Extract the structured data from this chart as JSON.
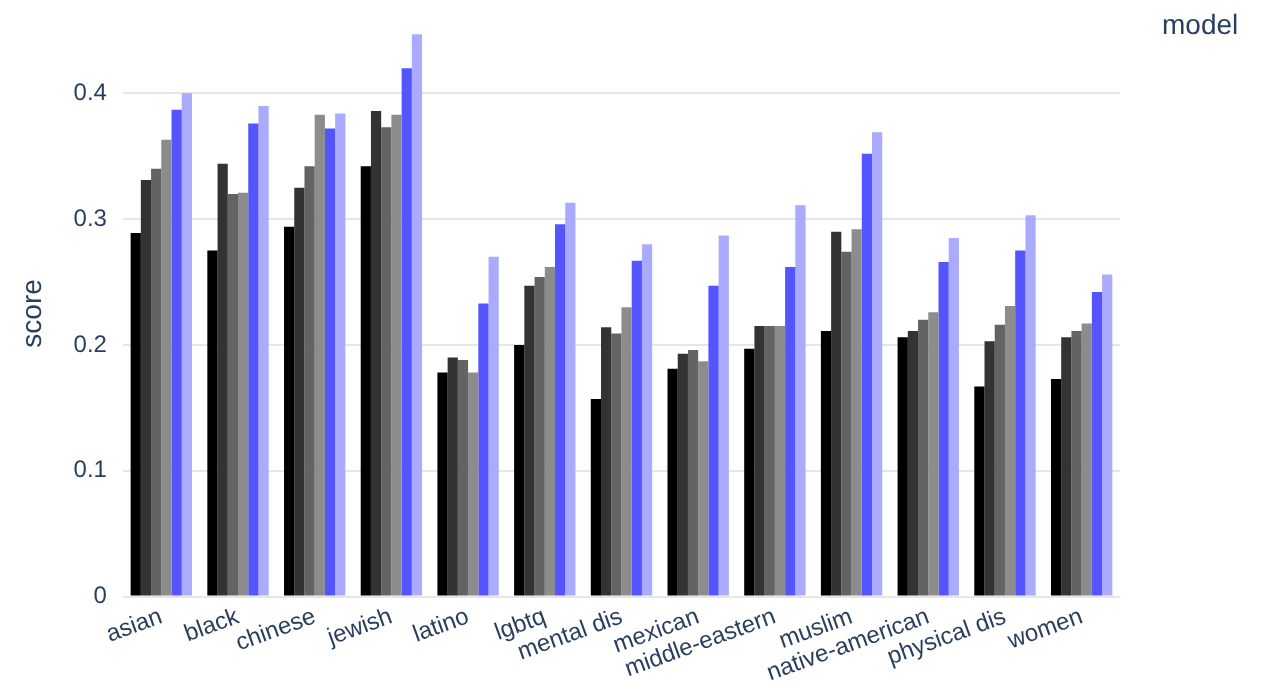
{
  "chart_data": {
    "type": "bar",
    "ylabel": "score",
    "legend_title": "model",
    "categories": [
      "asian",
      "black",
      "chinese",
      "jewish",
      "latino",
      "lgbtq",
      "mental dis",
      "mexican",
      "middle-eastern",
      "muslim",
      "native-american",
      "physical dis",
      "women"
    ],
    "series": [
      {
        "color": "#000000",
        "values": [
          0.289,
          0.275,
          0.294,
          0.342,
          0.178,
          0.2,
          0.157,
          0.181,
          0.197,
          0.211,
          0.206,
          0.167,
          0.173
        ]
      },
      {
        "color": "#333333",
        "values": [
          0.331,
          0.344,
          0.325,
          0.386,
          0.19,
          0.247,
          0.214,
          0.193,
          0.215,
          0.29,
          0.211,
          0.203,
          0.206
        ]
      },
      {
        "color": "#636363",
        "values": [
          0.34,
          0.32,
          0.342,
          0.373,
          0.188,
          0.254,
          0.209,
          0.196,
          0.215,
          0.274,
          0.22,
          0.216,
          0.211
        ]
      },
      {
        "color": "#8c8c8c",
        "values": [
          0.363,
          0.321,
          0.383,
          0.383,
          0.178,
          0.262,
          0.23,
          0.187,
          0.215,
          0.292,
          0.226,
          0.231,
          0.217
        ]
      },
      {
        "color": "#5555ff",
        "values": [
          0.387,
          0.376,
          0.372,
          0.42,
          0.233,
          0.296,
          0.267,
          0.247,
          0.262,
          0.352,
          0.266,
          0.275,
          0.242
        ]
      },
      {
        "color": "#aaaaff",
        "values": [
          0.4,
          0.39,
          0.384,
          0.447,
          0.27,
          0.313,
          0.28,
          0.287,
          0.311,
          0.369,
          0.285,
          0.303,
          0.256
        ]
      }
    ],
    "ylim": [
      0,
      0.45
    ],
    "yticks": [
      0,
      0.1,
      0.2,
      0.3,
      0.4
    ],
    "grid": "y"
  }
}
